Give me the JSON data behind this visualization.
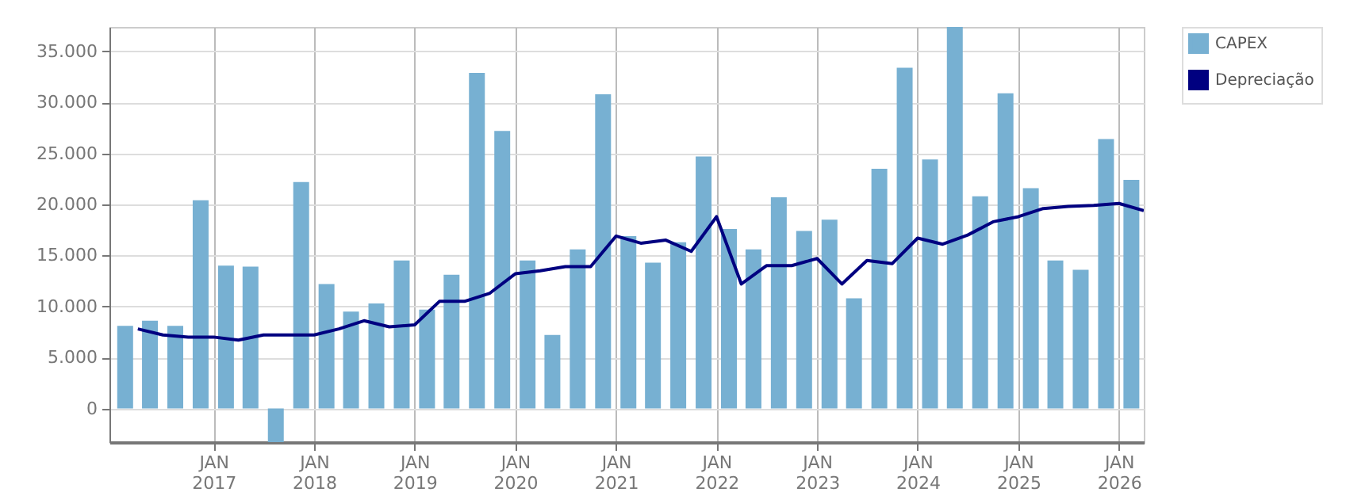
{
  "chart_data": {
    "type": "bar",
    "xlim": [
      "2015-12-20",
      "2026-04-01"
    ],
    "xticks": [
      {
        "value": "2017-01",
        "label": "JAN 2017"
      },
      {
        "value": "2018-01",
        "label": "JAN 2018"
      },
      {
        "value": "2019-01",
        "label": "JAN 2019"
      },
      {
        "value": "2020-01",
        "label": "JAN 2020"
      },
      {
        "value": "2021-01",
        "label": "JAN 2021"
      },
      {
        "value": "2022-01",
        "label": "JAN 2022"
      },
      {
        "value": "2023-01",
        "label": "JAN 2023"
      },
      {
        "value": "2024-01",
        "label": "JAN 2024"
      },
      {
        "value": "2025-01",
        "label": "JAN 2025"
      },
      {
        "value": "2026-01",
        "label": "JAN 2026"
      }
    ],
    "ylim": [
      -3300,
      37400
    ],
    "yticks": [
      {
        "value": 0,
        "label": "0"
      },
      {
        "value": 5000,
        "label": "5.000"
      },
      {
        "value": 10000,
        "label": "10.000"
      },
      {
        "value": 15000,
        "label": "15.000"
      },
      {
        "value": 20000,
        "label": "20.000"
      },
      {
        "value": 25000,
        "label": "25.000"
      },
      {
        "value": 30000,
        "label": "30.000"
      },
      {
        "value": 35000,
        "label": "35.000"
      }
    ],
    "grid": true,
    "legend": "top right",
    "series": [
      {
        "name": "CAPEX",
        "color": "#77b0d2",
        "x": [
          "2016-02-15",
          "2016-05-15",
          "2016-08-15",
          "2016-11-15",
          "2017-02-15",
          "2017-05-15",
          "2017-08-15",
          "2017-11-15",
          "2018-02-15",
          "2018-05-15",
          "2018-08-15",
          "2018-11-15",
          "2019-02-15",
          "2019-05-15",
          "2019-08-15",
          "2019-11-15",
          "2020-02-15",
          "2020-05-15",
          "2020-08-15",
          "2020-11-15",
          "2021-02-15",
          "2021-05-15",
          "2021-08-15",
          "2021-11-15",
          "2022-02-15",
          "2022-05-15",
          "2022-08-15",
          "2022-11-15",
          "2023-02-15",
          "2023-05-15",
          "2023-08-15",
          "2023-11-15",
          "2024-02-15",
          "2024-05-15",
          "2024-08-15",
          "2024-11-15",
          "2025-02-15",
          "2025-05-15",
          "2025-08-15",
          "2025-11-15",
          "2026-02-15"
        ],
        "values": [
          8100,
          8600,
          8100,
          20400,
          14000,
          13900,
          -3300,
          22200,
          12200,
          9500,
          10300,
          14500,
          9700,
          13100,
          32900,
          27200,
          14500,
          7200,
          15600,
          30800,
          16900,
          14300,
          16300,
          24700,
          17600,
          15600,
          20700,
          17400,
          18500,
          10800,
          23500,
          33400,
          24400,
          37400,
          20800,
          30900,
          21600,
          14500,
          13600,
          26400,
          22400
        ]
      },
      {
        "name": "Depreciação",
        "type": "line",
        "color": "#000080",
        "x": [
          "2016-04",
          "2016-07",
          "2016-10",
          "2017-01",
          "2017-04",
          "2017-07",
          "2017-10",
          "2018-01",
          "2018-04",
          "2018-07",
          "2018-10",
          "2019-01",
          "2019-04",
          "2019-07",
          "2019-10",
          "2020-01",
          "2020-04",
          "2020-07",
          "2020-10",
          "2021-01",
          "2021-04",
          "2021-07",
          "2021-10",
          "2022-01",
          "2022-04",
          "2022-07",
          "2022-10",
          "2023-01",
          "2023-04",
          "2023-07",
          "2023-10",
          "2024-01",
          "2024-04",
          "2024-07",
          "2024-10",
          "2025-01",
          "2025-04",
          "2025-07",
          "2025-10",
          "2026-01",
          "2026-04"
        ],
        "values": [
          7800,
          7200,
          7000,
          7000,
          6700,
          7200,
          7200,
          7200,
          7800,
          8600,
          8000,
          8200,
          10500,
          10500,
          11300,
          13200,
          13500,
          13900,
          13900,
          16900,
          16200,
          16500,
          15400,
          18800,
          12200,
          14000,
          14000,
          14700,
          12200,
          14500,
          14200,
          16700,
          16100,
          17000,
          18300,
          18800,
          19600,
          19800,
          19900,
          20100,
          19400
        ]
      }
    ]
  }
}
